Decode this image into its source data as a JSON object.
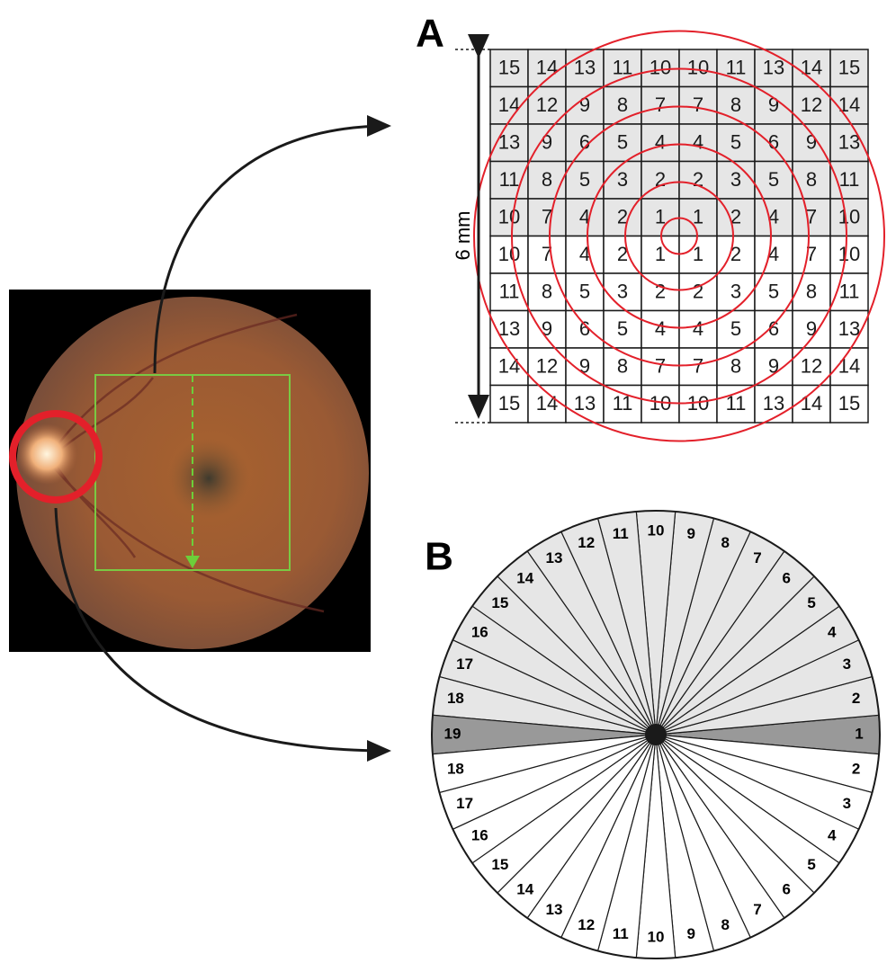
{
  "panel_a": {
    "label": "A",
    "scale_label": "6 mm",
    "grid": [
      [
        15,
        14,
        13,
        11,
        10,
        10,
        11,
        13,
        14,
        15
      ],
      [
        14,
        12,
        9,
        8,
        7,
        7,
        8,
        9,
        12,
        14
      ],
      [
        13,
        9,
        6,
        5,
        4,
        4,
        5,
        6,
        9,
        13
      ],
      [
        11,
        8,
        5,
        3,
        2,
        2,
        3,
        5,
        8,
        11
      ],
      [
        10,
        7,
        4,
        2,
        1,
        1,
        2,
        4,
        7,
        10
      ],
      [
        10,
        7,
        4,
        2,
        1,
        1,
        2,
        4,
        7,
        10
      ],
      [
        11,
        8,
        5,
        3,
        2,
        2,
        3,
        5,
        8,
        11
      ],
      [
        13,
        9,
        6,
        5,
        4,
        4,
        5,
        6,
        9,
        13
      ],
      [
        14,
        12,
        9,
        8,
        7,
        7,
        8,
        9,
        12,
        14
      ],
      [
        15,
        14,
        13,
        11,
        10,
        10,
        11,
        13,
        14,
        15
      ]
    ]
  },
  "panel_b": {
    "label": "B",
    "upper_sectors": [
      1,
      2,
      3,
      4,
      5,
      6,
      7,
      8,
      9,
      10,
      11,
      12,
      13,
      14,
      15,
      16,
      17,
      18,
      19
    ],
    "lower_sectors": [
      2,
      3,
      4,
      5,
      6,
      7,
      8,
      9,
      10,
      11,
      12,
      13,
      14,
      15,
      16,
      17,
      18
    ]
  }
}
